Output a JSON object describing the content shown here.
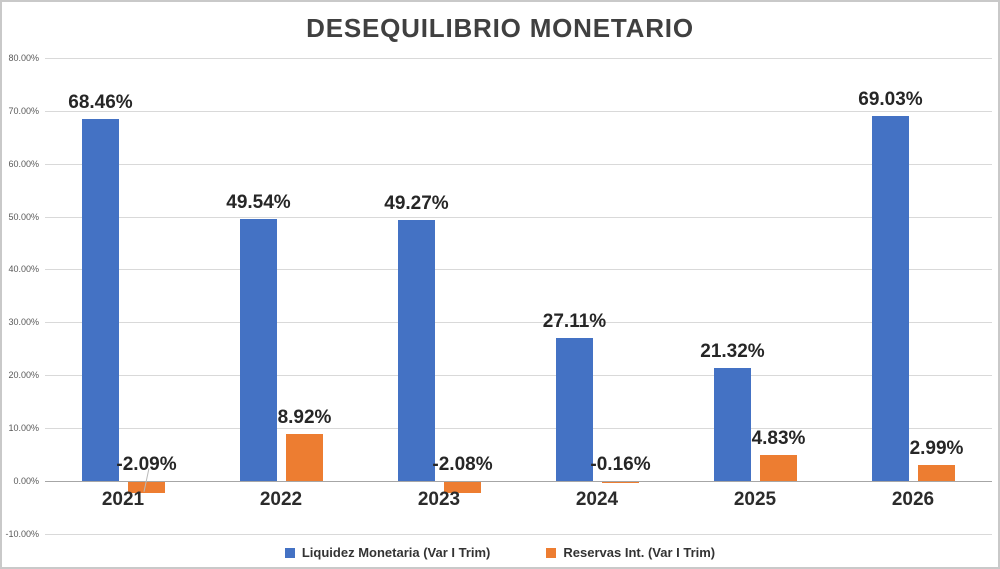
{
  "chart_data": {
    "type": "bar",
    "title": "DESEQUILIBRIO MONETARIO",
    "categories": [
      "2021",
      "2022",
      "2023",
      "2024",
      "2025",
      "2026"
    ],
    "series": [
      {
        "name": "Liquidez Monetaria (Var I Trim)",
        "color": "#4472C4",
        "values": [
          68.46,
          49.54,
          49.27,
          27.11,
          21.32,
          69.03
        ],
        "labels": [
          "68.46%",
          "49.54%",
          "49.27%",
          "27.11%",
          "21.32%",
          "69.03%"
        ]
      },
      {
        "name": "Reservas Int. (Var I Trim)",
        "color": "#ED7D31",
        "values": [
          -2.09,
          8.92,
          -2.08,
          -0.16,
          4.83,
          2.99
        ],
        "labels": [
          "-2.09%",
          "8.92%",
          "-2.08%",
          "-0.16%",
          "4.83%",
          "2.99%"
        ]
      }
    ],
    "y_axis": {
      "min": -10,
      "max": 80,
      "step": 10,
      "tick_labels": [
        "80.00%",
        "70.00%",
        "60.00%",
        "50.00%",
        "40.00%",
        "30.00%",
        "20.00%",
        "10.00%",
        "0.00%",
        "-10.00%"
      ]
    },
    "grid": true,
    "legend_position": "bottom",
    "colors": {
      "title": "#404040",
      "data_label": "#262626",
      "gridline": "#d9d9d9",
      "axis_line": "#a6a6a6",
      "tick_label": "#595959"
    }
  }
}
